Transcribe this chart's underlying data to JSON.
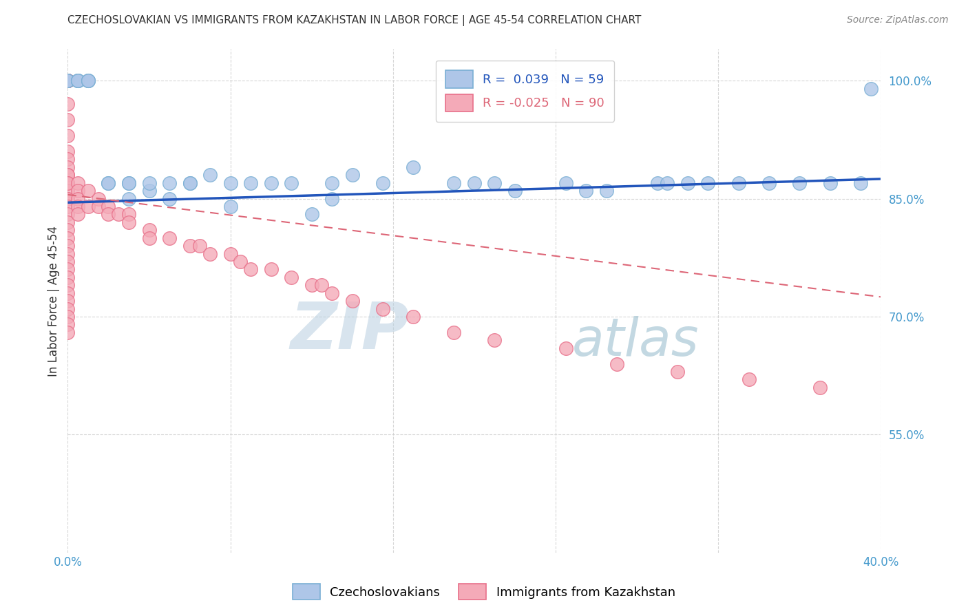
{
  "title": "CZECHOSLOVAKIAN VS IMMIGRANTS FROM KAZAKHSTAN IN LABOR FORCE | AGE 45-54 CORRELATION CHART",
  "source": "Source: ZipAtlas.com",
  "ylabel": "In Labor Force | Age 45-54",
  "blue_label": "Czechoslovakians",
  "pink_label": "Immigrants from Kazakhstan",
  "blue_R": 0.039,
  "blue_N": 59,
  "pink_R": -0.025,
  "pink_N": 90,
  "xlim": [
    0.0,
    0.4
  ],
  "ylim": [
    0.4,
    1.04
  ],
  "yticks": [
    0.55,
    0.7,
    0.85,
    1.0
  ],
  "xticks": [
    0.0,
    0.08,
    0.16,
    0.24,
    0.32,
    0.4
  ],
  "xtick_labels": [
    "0.0%",
    "",
    "",
    "",
    "",
    "40.0%"
  ],
  "ytick_labels": [
    "55.0%",
    "70.0%",
    "85.0%",
    "100.0%"
  ],
  "blue_color": "#aec6e8",
  "pink_color": "#f4aab8",
  "blue_edge": "#7aafd4",
  "pink_edge": "#e8708a",
  "blue_line_color": "#2255bb",
  "pink_line_color": "#dd6677",
  "watermark_zip": "ZIP",
  "watermark_atlas": "atlas",
  "background": "#ffffff",
  "grid_color": "#cccccc",
  "blue_scatter_x": [
    0.0,
    0.0,
    0.0,
    0.005,
    0.005,
    0.005,
    0.005,
    0.01,
    0.01,
    0.01,
    0.02,
    0.02,
    0.03,
    0.03,
    0.03,
    0.04,
    0.04,
    0.05,
    0.05,
    0.06,
    0.06,
    0.07,
    0.08,
    0.08,
    0.09,
    0.1,
    0.11,
    0.12,
    0.13,
    0.13,
    0.14,
    0.155,
    0.17,
    0.19,
    0.2,
    0.21,
    0.22,
    0.245,
    0.255,
    0.265,
    0.29,
    0.295,
    0.305,
    0.315,
    0.33,
    0.345,
    0.36,
    0.375,
    0.39,
    0.395
  ],
  "blue_scatter_y": [
    1.0,
    1.0,
    1.0,
    1.0,
    1.0,
    1.0,
    1.0,
    1.0,
    1.0,
    1.0,
    0.87,
    0.87,
    0.87,
    0.85,
    0.87,
    0.86,
    0.87,
    0.87,
    0.85,
    0.87,
    0.87,
    0.88,
    0.87,
    0.84,
    0.87,
    0.87,
    0.87,
    0.83,
    0.87,
    0.85,
    0.88,
    0.87,
    0.89,
    0.87,
    0.87,
    0.87,
    0.86,
    0.87,
    0.86,
    0.86,
    0.87,
    0.87,
    0.87,
    0.87,
    0.87,
    0.87,
    0.87,
    0.87,
    0.87,
    0.99
  ],
  "pink_scatter_x": [
    0.0,
    0.0,
    0.0,
    0.0,
    0.0,
    0.0,
    0.0,
    0.0,
    0.0,
    0.0,
    0.0,
    0.0,
    0.0,
    0.0,
    0.0,
    0.0,
    0.0,
    0.0,
    0.0,
    0.0,
    0.0,
    0.0,
    0.0,
    0.0,
    0.0,
    0.0,
    0.0,
    0.0,
    0.0,
    0.0,
    0.0,
    0.0,
    0.0,
    0.0,
    0.0,
    0.0,
    0.0,
    0.0,
    0.0,
    0.0,
    0.005,
    0.005,
    0.005,
    0.005,
    0.005,
    0.01,
    0.01,
    0.015,
    0.015,
    0.02,
    0.02,
    0.025,
    0.03,
    0.03,
    0.04,
    0.04,
    0.05,
    0.06,
    0.065,
    0.07,
    0.08,
    0.085,
    0.09,
    0.1,
    0.11,
    0.12,
    0.125,
    0.13,
    0.14,
    0.155,
    0.17,
    0.19,
    0.21,
    0.245,
    0.27,
    0.3,
    0.335,
    0.37
  ],
  "pink_scatter_y": [
    1.0,
    1.0,
    1.0,
    1.0,
    1.0,
    1.0,
    1.0,
    1.0,
    1.0,
    1.0,
    0.97,
    0.95,
    0.93,
    0.91,
    0.9,
    0.89,
    0.88,
    0.88,
    0.87,
    0.86,
    0.85,
    0.85,
    0.84,
    0.83,
    0.82,
    0.81,
    0.8,
    0.79,
    0.78,
    0.77,
    0.76,
    0.75,
    0.74,
    0.73,
    0.72,
    0.71,
    0.7,
    0.69,
    0.68,
    0.87,
    0.87,
    0.86,
    0.85,
    0.84,
    0.83,
    0.86,
    0.84,
    0.85,
    0.84,
    0.84,
    0.83,
    0.83,
    0.83,
    0.82,
    0.81,
    0.8,
    0.8,
    0.79,
    0.79,
    0.78,
    0.78,
    0.77,
    0.76,
    0.76,
    0.75,
    0.74,
    0.74,
    0.73,
    0.72,
    0.71,
    0.7,
    0.68,
    0.67,
    0.66,
    0.64,
    0.63,
    0.62,
    0.61
  ],
  "blue_line_x": [
    0.0,
    0.4
  ],
  "blue_line_y": [
    0.845,
    0.875
  ],
  "pink_line_x": [
    0.0,
    0.4
  ],
  "pink_line_y": [
    0.855,
    0.725
  ]
}
